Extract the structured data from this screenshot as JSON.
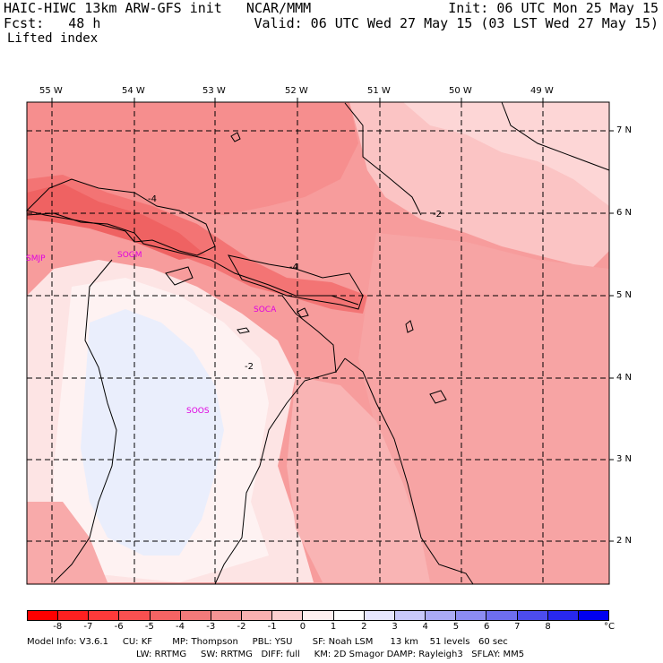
{
  "header": {
    "line1_left": "HAIC-HIWC 13km ARW-GFS init   NCAR/MMM",
    "line1_right": "Init: 06 UTC Mon 25 May 15",
    "line2_left": "Fcst:   48 h",
    "line2_right": "Valid: 06 UTC Wed 27 May 15 (03 LST Wed 27 May 15)",
    "field": "Lifted index"
  },
  "map": {
    "lon_labels": [
      "55 W",
      "54 W",
      "53 W",
      "52 W",
      "51 W",
      "50 W",
      "49 W"
    ],
    "lat_labels": [
      "7 N",
      "6 N",
      "5 N",
      "4 N",
      "3 N",
      "2 N"
    ],
    "stations": [
      "SMJP",
      "SOGM",
      "SOCA",
      "SOOS"
    ],
    "contour_labels": [
      "-4",
      "-4",
      "-2",
      "-2"
    ],
    "colors": {
      "minus3": "#f58a8a",
      "minus2": "#fbb5b5",
      "minus1": "#fde2e2",
      "zero": "#fef3f3",
      "plus1": "#eaeefc",
      "minus4": "#f26a6a"
    }
  },
  "colorbar": {
    "ticks": [
      "-8",
      "-7",
      "-6",
      "-5",
      "-4",
      "-3",
      "-2",
      "-1",
      "0",
      "1",
      "2",
      "3",
      "4",
      "5",
      "6",
      "7",
      "8"
    ],
    "unit": "°C",
    "colors": [
      "#ff0000",
      "#ff2020",
      "#ff3a3a",
      "#f85050",
      "#f56464",
      "#f27a7a",
      "#f49494",
      "#f8b0b0",
      "#fcd0d0",
      "#fff0f0",
      "#ffffff",
      "#e6e6ff",
      "#c8c8fa",
      "#aaaaf5",
      "#8c8cf2",
      "#6e6eef",
      "#4c4cee",
      "#2828ef",
      "#0000f0"
    ]
  },
  "model_info": {
    "line1": "Model Info: V3.6.1     CU: KF       MP: Thompson     PBL: YSU       SF: Noah LSM      13 km    51 levels   60 sec",
    "line2": "LW: RRTMG     SW: RRTMG   DIFF: full     KM: 2D Smagor DAMP: Rayleigh3   SFLAY: MM5"
  }
}
